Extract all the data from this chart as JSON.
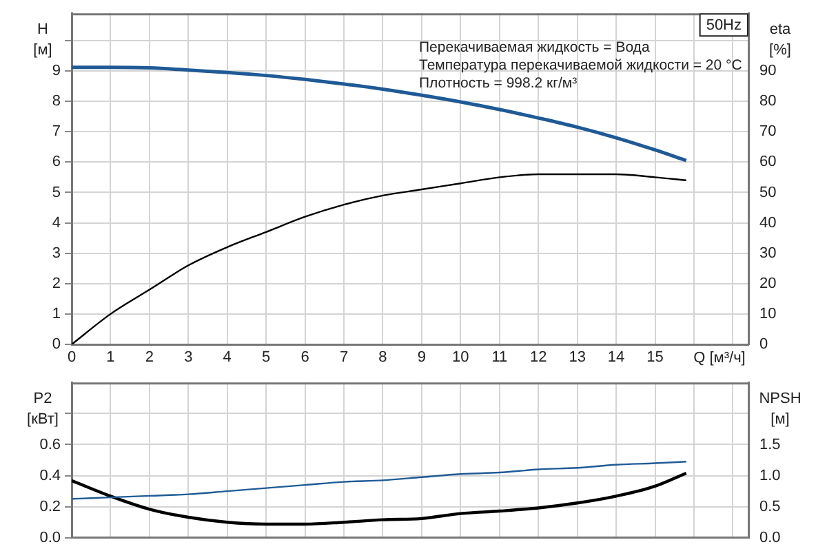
{
  "chart_data": [
    {
      "type": "line",
      "title": "50Hz",
      "xlabel": "Q [м³/ч]",
      "ylabel": "H [м]",
      "y2label": "eta [%]",
      "annotations": [
        "Перекачиваемая жидкость = Вода",
        "Температура перекачиваемой жидкости = 20 °C",
        "Плотность = 998.2 кг/м³"
      ],
      "x": [
        0,
        1,
        2,
        3,
        4,
        5,
        6,
        7,
        8,
        9,
        10,
        11,
        12,
        13,
        14,
        15,
        15.8
      ],
      "series": [
        {
          "color": "#1f5a96",
          "values": [
            9.12,
            9.12,
            9.1,
            9.03,
            8.95,
            8.85,
            8.72,
            8.57,
            8.4,
            8.2,
            7.98,
            7.73,
            7.45,
            7.15,
            6.8,
            6.4,
            6.05
          ]
        },
        {
          "color": "#000000",
          "axis": "y2",
          "values": [
            0,
            10,
            18,
            26,
            32,
            37,
            42,
            46,
            49,
            51,
            53,
            55,
            56,
            56,
            56,
            55,
            54
          ]
        }
      ],
      "xlim": [
        0,
        17.4
      ],
      "xticks": [
        0,
        1,
        2,
        3,
        4,
        5,
        6,
        7,
        8,
        9,
        10,
        11,
        12,
        13,
        14,
        15,
        {
          "value": 16,
          "label": null
        },
        {
          "value": 17,
          "label": null
        }
      ],
      "ylim": [
        0,
        10.9
      ],
      "yticks": [
        0,
        1,
        2,
        3,
        4,
        5,
        6,
        7,
        8,
        9,
        {
          "value": 10,
          "label": null
        }
      ],
      "y2lim": [
        0,
        109
      ],
      "y2ticks": [
        0,
        10,
        20,
        30,
        40,
        50,
        60,
        70,
        80,
        90,
        {
          "value": 100,
          "label": null
        }
      ],
      "grid": true,
      "marker": "none"
    },
    {
      "type": "line",
      "ylabel": "P2 [кВт]",
      "y2label": "NPSH [м]",
      "x": [
        0,
        1,
        2,
        3,
        4,
        5,
        6,
        7,
        8,
        9,
        10,
        11,
        12,
        13,
        14,
        15,
        15.8
      ],
      "series": [
        {
          "color": "#1f5a96",
          "values": [
            0.25,
            0.26,
            0.27,
            0.28,
            0.3,
            0.32,
            0.34,
            0.36,
            0.37,
            0.39,
            0.41,
            0.42,
            0.44,
            0.45,
            0.47,
            0.48,
            0.49
          ]
        },
        {
          "color": "#000000",
          "axis": "y2",
          "values": [
            0.92,
            0.67,
            0.46,
            0.33,
            0.25,
            0.22,
            0.22,
            0.25,
            0.29,
            0.31,
            0.39,
            0.43,
            0.48,
            0.56,
            0.67,
            0.83,
            1.04
          ]
        }
      ],
      "xlim": [
        0,
        17.4
      ],
      "xticks": [
        0,
        1,
        2,
        3,
        4,
        5,
        6,
        7,
        8,
        9,
        10,
        11,
        12,
        13,
        14,
        15,
        16,
        17
      ],
      "ylim": [
        0,
        1.0
      ],
      "yticks": [
        {
          "value": 0,
          "label": "0.0"
        },
        0.2,
        0.4,
        0.6,
        {
          "value": 0.8,
          "label": null
        }
      ],
      "y2lim": [
        0,
        2.5
      ],
      "y2ticks": [
        {
          "value": 0,
          "label": "0.0"
        },
        0.5,
        {
          "value": 1,
          "label": "1.0"
        },
        1.5,
        {
          "value": 2,
          "label": null
        }
      ],
      "grid": true,
      "tick_labels": "y",
      "marker": "none"
    }
  ]
}
